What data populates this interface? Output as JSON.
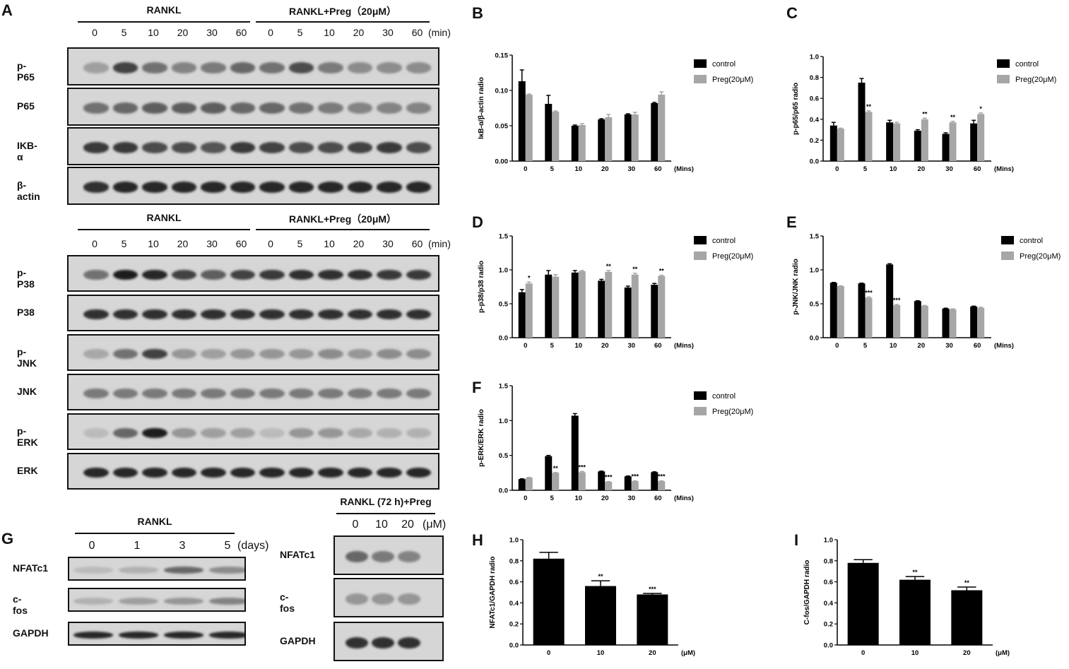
{
  "panel_labels": {
    "A": "A",
    "B": "B",
    "C": "C",
    "D": "D",
    "E": "E",
    "F": "F",
    "G": "G",
    "H": "H",
    "I": "I"
  },
  "blots_top": {
    "group_left": "RANKL",
    "group_right": "RANKL+Preg（20μM）",
    "timepoints": [
      "0",
      "5",
      "10",
      "20",
      "30",
      "60",
      "0",
      "5",
      "10",
      "20",
      "30",
      "60"
    ],
    "unit": "(min)",
    "rows": [
      {
        "label": "p-P65",
        "intensity": [
          0.25,
          0.75,
          0.5,
          0.4,
          0.45,
          0.55,
          0.5,
          0.7,
          0.45,
          0.35,
          0.35,
          0.35
        ]
      },
      {
        "label": "P65",
        "intensity": [
          0.5,
          0.55,
          0.6,
          0.6,
          0.6,
          0.55,
          0.55,
          0.5,
          0.45,
          0.4,
          0.4,
          0.4
        ]
      },
      {
        "label": "IKB-α",
        "intensity": [
          0.8,
          0.8,
          0.7,
          0.7,
          0.65,
          0.8,
          0.75,
          0.7,
          0.7,
          0.75,
          0.8,
          0.7
        ]
      },
      {
        "label": "β-actin",
        "intensity": [
          0.85,
          0.9,
          0.9,
          0.9,
          0.9,
          0.9,
          0.9,
          0.9,
          0.9,
          0.9,
          0.9,
          0.9
        ]
      }
    ]
  },
  "blots_mid": {
    "group_left": "RANKL",
    "group_right": "RANKL+Preg（20μM）",
    "timepoints": [
      "0",
      "5",
      "10",
      "20",
      "30",
      "60",
      "0",
      "5",
      "10",
      "20",
      "30",
      "60"
    ],
    "unit": "(min)",
    "rows": [
      {
        "label": "p-P38",
        "intensity": [
          0.5,
          0.95,
          0.9,
          0.75,
          0.6,
          0.75,
          0.8,
          0.85,
          0.85,
          0.85,
          0.8,
          0.8
        ]
      },
      {
        "label": "P38",
        "intensity": [
          0.85,
          0.85,
          0.85,
          0.85,
          0.85,
          0.85,
          0.85,
          0.85,
          0.85,
          0.85,
          0.85,
          0.85
        ]
      },
      {
        "label": "p-JNK",
        "intensity": [
          0.2,
          0.5,
          0.75,
          0.3,
          0.25,
          0.3,
          0.3,
          0.3,
          0.35,
          0.3,
          0.35,
          0.35
        ]
      },
      {
        "label": "JNK",
        "intensity": [
          0.45,
          0.45,
          0.45,
          0.45,
          0.45,
          0.45,
          0.45,
          0.45,
          0.45,
          0.45,
          0.45,
          0.45
        ]
      },
      {
        "label": "p-ERK",
        "intensity": [
          0.1,
          0.55,
          0.95,
          0.3,
          0.25,
          0.25,
          0.1,
          0.3,
          0.3,
          0.2,
          0.15,
          0.15
        ]
      },
      {
        "label": "ERK",
        "intensity": [
          0.9,
          0.9,
          0.9,
          0.9,
          0.9,
          0.9,
          0.9,
          0.9,
          0.9,
          0.9,
          0.9,
          0.9
        ]
      }
    ]
  },
  "blots_g_left": {
    "group": "RANKL",
    "timepoints": [
      "0",
      "1",
      "3",
      "5"
    ],
    "unit": "(days)",
    "rows": [
      {
        "label": "NFATc1",
        "intensity": [
          0.1,
          0.15,
          0.55,
          0.35
        ]
      },
      {
        "label": "c-fos",
        "intensity": [
          0.15,
          0.25,
          0.3,
          0.4
        ]
      },
      {
        "label": "GAPDH",
        "intensity": [
          0.9,
          0.9,
          0.9,
          0.9
        ]
      }
    ]
  },
  "blots_g_right": {
    "group": "RANKL (72 h)+Preg",
    "doses": [
      "0",
      "10",
      "20"
    ],
    "unit": "(μM)",
    "rows": [
      {
        "label": "NFATc1",
        "intensity": [
          0.55,
          0.45,
          0.4
        ]
      },
      {
        "label": "c-fos",
        "intensity": [
          0.3,
          0.3,
          0.3
        ]
      },
      {
        "label": "GAPDH",
        "intensity": [
          0.85,
          0.85,
          0.85
        ]
      }
    ]
  },
  "colors": {
    "control": "#000000",
    "preg": "#a6a6a6",
    "blot_bg": "#d6d6d6",
    "band": "#1a1a1a"
  },
  "chart_data": [
    {
      "id": "B",
      "type": "bar",
      "categories": [
        "0",
        "5",
        "10",
        "20",
        "30",
        "60"
      ],
      "xunit": "(Mins)",
      "ylabel": "IκB-α/β-actin radio",
      "ylim": [
        0,
        0.15
      ],
      "yticks": [
        "0.00",
        "0.05",
        "0.10",
        "0.15"
      ],
      "series": [
        {
          "name": "control",
          "values": [
            0.113,
            0.081,
            0.05,
            0.059,
            0.066,
            0.082
          ],
          "err": [
            0.016,
            0.012,
            0.001,
            0.001,
            0.001,
            0.001
          ]
        },
        {
          "name": "Preg(20μM)",
          "values": [
            0.094,
            0.07,
            0.051,
            0.062,
            0.066,
            0.094
          ],
          "err": [
            0.001,
            0.001,
            0.002,
            0.004,
            0.003,
            0.004
          ]
        }
      ],
      "sig": [
        "",
        "",
        "",
        "",
        "",
        ""
      ],
      "legend": "top-right"
    },
    {
      "id": "C",
      "type": "bar",
      "categories": [
        "0",
        "5",
        "10",
        "20",
        "30",
        "60"
      ],
      "xunit": "(Mins)",
      "ylabel": "p-p65/p65 radio",
      "ylim": [
        0,
        1.0
      ],
      "yticks": [
        "0.0",
        "0.2",
        "0.4",
        "0.6",
        "0.8",
        "1.0"
      ],
      "series": [
        {
          "name": "control",
          "values": [
            0.34,
            0.75,
            0.37,
            0.29,
            0.26,
            0.36
          ],
          "err": [
            0.03,
            0.04,
            0.02,
            0.01,
            0.01,
            0.03
          ]
        },
        {
          "name": "Preg(20μM)",
          "values": [
            0.31,
            0.47,
            0.36,
            0.4,
            0.37,
            0.45
          ],
          "err": [
            0.005,
            0.01,
            0.01,
            0.01,
            0.01,
            0.01
          ]
        }
      ],
      "sig": [
        "",
        "**",
        "",
        "**",
        "**",
        "*"
      ],
      "legend": "top-right"
    },
    {
      "id": "D",
      "type": "bar",
      "categories": [
        "0",
        "5",
        "10",
        "20",
        "30",
        "60"
      ],
      "xunit": "(Mins)",
      "ylabel": "p-p38/p38 radio",
      "ylim": [
        0,
        1.5
      ],
      "yticks": [
        "0.0",
        "0.5",
        "1.0",
        "1.5"
      ],
      "series": [
        {
          "name": "control",
          "values": [
            0.67,
            0.93,
            0.96,
            0.84,
            0.74,
            0.78
          ],
          "err": [
            0.04,
            0.06,
            0.03,
            0.02,
            0.02,
            0.02
          ]
        },
        {
          "name": "Preg(20μM)",
          "values": [
            0.8,
            0.9,
            0.98,
            0.97,
            0.93,
            0.91
          ],
          "err": [
            0.02,
            0.03,
            0.01,
            0.02,
            0.02,
            0.01
          ]
        }
      ],
      "sig": [
        "*",
        "",
        "",
        "**",
        "**",
        "**"
      ],
      "legend": "top-right"
    },
    {
      "id": "E",
      "type": "bar",
      "categories": [
        "0",
        "5",
        "10",
        "20",
        "30",
        "60"
      ],
      "xunit": "(Mins)",
      "ylabel": "p-JNK/JNK radio",
      "ylim": [
        0,
        1.5
      ],
      "yticks": [
        "0.0",
        "0.5",
        "1.0",
        "1.5"
      ],
      "series": [
        {
          "name": "control",
          "values": [
            0.81,
            0.8,
            1.08,
            0.54,
            0.43,
            0.46
          ],
          "err": [
            0.005,
            0.005,
            0.01,
            0.005,
            0.005,
            0.005
          ]
        },
        {
          "name": "Preg(20μM)",
          "values": [
            0.76,
            0.59,
            0.48,
            0.47,
            0.42,
            0.44
          ],
          "err": [
            0.005,
            0.01,
            0.01,
            0.005,
            0.005,
            0.01
          ]
        }
      ],
      "sig": [
        "",
        "***",
        "***",
        "",
        "",
        ""
      ],
      "legend": "top-right"
    },
    {
      "id": "F",
      "type": "bar",
      "categories": [
        "0",
        "5",
        "10",
        "20",
        "30",
        "60"
      ],
      "xunit": "(Mins)",
      "ylabel": "p-ERK/ERK radio",
      "ylim": [
        0,
        1.5
      ],
      "yticks": [
        "0.0",
        "0.5",
        "1.0",
        "1.5"
      ],
      "series": [
        {
          "name": "control",
          "values": [
            0.16,
            0.49,
            1.07,
            0.27,
            0.2,
            0.26
          ],
          "err": [
            0.005,
            0.01,
            0.03,
            0.005,
            0.005,
            0.005
          ]
        },
        {
          "name": "Preg(20μM)",
          "values": [
            0.18,
            0.25,
            0.26,
            0.12,
            0.13,
            0.13
          ],
          "err": [
            0.005,
            0.005,
            0.01,
            0.005,
            0.005,
            0.005
          ]
        }
      ],
      "sig": [
        "",
        "**",
        "***",
        "***",
        "***",
        "***"
      ],
      "legend": "top-right"
    },
    {
      "id": "H",
      "type": "bar",
      "categories": [
        "0",
        "10",
        "20"
      ],
      "xunit": "(μM)",
      "ylabel": "NFATc1/GAPDH radio",
      "ylim": [
        0,
        1.0
      ],
      "yticks": [
        "0.0",
        "0.2",
        "0.4",
        "0.6",
        "0.8",
        "1.0"
      ],
      "series": [
        {
          "values": [
            0.82,
            0.56,
            0.48
          ],
          "err": [
            0.06,
            0.05,
            0.01
          ]
        }
      ],
      "sig": [
        "",
        "**",
        "***"
      ]
    },
    {
      "id": "I",
      "type": "bar",
      "categories": [
        "0",
        "10",
        "20"
      ],
      "xunit": "(μM)",
      "ylabel": "C-fos/GAPDH radio",
      "ylim": [
        0,
        1.0
      ],
      "yticks": [
        "0.0",
        "0.2",
        "0.4",
        "0.6",
        "0.8",
        "1.0"
      ],
      "series": [
        {
          "values": [
            0.78,
            0.62,
            0.52
          ],
          "err": [
            0.03,
            0.03,
            0.03
          ]
        }
      ],
      "sig": [
        "",
        "**",
        "**"
      ]
    }
  ]
}
